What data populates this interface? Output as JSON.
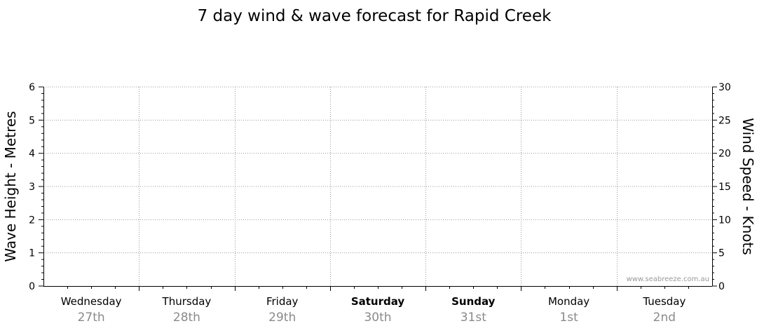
{
  "chart_data": {
    "type": "line",
    "title": "7 day wind & wave forecast for Rapid Creek",
    "ylabel": "Wave Height - Metres",
    "y2label": "Wind Speed - Knots",
    "ylim": [
      0,
      6
    ],
    "y2lim": [
      0,
      30
    ],
    "y_ticks": [
      "0",
      "1",
      "2",
      "3",
      "4",
      "5",
      "6"
    ],
    "y2_ticks": [
      "0",
      "5",
      "10",
      "15",
      "20",
      "25",
      "30"
    ],
    "days": [
      {
        "name": "Wednesday",
        "date": "27th",
        "bold": false
      },
      {
        "name": "Thursday",
        "date": "28th",
        "bold": false
      },
      {
        "name": "Friday",
        "date": "29th",
        "bold": false
      },
      {
        "name": "Saturday",
        "date": "30th",
        "bold": true
      },
      {
        "name": "Sunday",
        "date": "31st",
        "bold": true
      },
      {
        "name": "Monday",
        "date": "1st",
        "bold": false
      },
      {
        "name": "Tuesday",
        "date": "2nd",
        "bold": false
      }
    ],
    "series": [],
    "grid": true,
    "watermark": "www.seabreeze.com.au"
  }
}
